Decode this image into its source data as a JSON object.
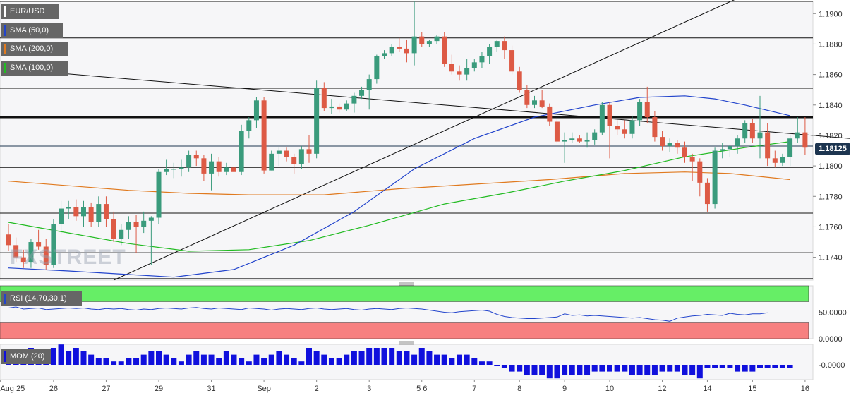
{
  "legend": {
    "symbol": "EUR/USD",
    "sma50": "SMA (50,0)",
    "sma200": "SMA (200,0)",
    "sma100": "SMA (100,0)",
    "rsi": "RSI (14,70,30,1)",
    "mom": "MOM (20)"
  },
  "watermark": "FXSTREET",
  "current_price": "1.18125",
  "colors": {
    "up": "#3a9b7c",
    "down": "#dd5a45",
    "sma50": "#2244cc",
    "sma200": "#e07a1f",
    "sma100": "#22bb22",
    "rsi_line": "#2244cc",
    "rsi_overbought": "#66ee66",
    "rsi_oversold": "#f78080",
    "mom_bar": "#1010dd"
  },
  "chart_data": {
    "type": "candlestick",
    "price_axis": {
      "ylim": [
        1.1725,
        1.1908
      ],
      "ticks": [
        "1.1900",
        "1.1880",
        "1.1860",
        "1.1840",
        "1.1820",
        "1.1800",
        "1.1780",
        "1.1760",
        "1.1740"
      ]
    },
    "x_labels": [
      "Aug 25",
      "26",
      "27",
      "29",
      "31",
      "Sep",
      "2",
      "3",
      "5 6",
      "7",
      "8",
      "9",
      "10",
      "12",
      "14",
      "15",
      "16"
    ],
    "horizontal_levels": [
      1.1908,
      1.1884,
      1.1851,
      1.1832,
      1.1813,
      1.1799,
      1.1769,
      1.1743,
      1.1726
    ],
    "candles": [
      [
        1.1755,
        1.1762,
        1.1744,
        1.1748
      ],
      [
        1.1748,
        1.1753,
        1.1737,
        1.174
      ],
      [
        1.174,
        1.1745,
        1.1733,
        1.1737
      ],
      [
        1.1737,
        1.1752,
        1.1733,
        1.175
      ],
      [
        1.175,
        1.1758,
        1.1745,
        1.1747
      ],
      [
        1.1747,
        1.1752,
        1.1732,
        1.1735
      ],
      [
        1.1735,
        1.1765,
        1.1733,
        1.1762
      ],
      [
        1.1762,
        1.1777,
        1.1755,
        1.1772
      ],
      [
        1.1772,
        1.1777,
        1.1765,
        1.1773
      ],
      [
        1.1773,
        1.1778,
        1.1764,
        1.1767
      ],
      [
        1.1767,
        1.1777,
        1.176,
        1.1773
      ],
      [
        1.1773,
        1.1776,
        1.176,
        1.1763
      ],
      [
        1.1763,
        1.178,
        1.176,
        1.1775
      ],
      [
        1.1775,
        1.178,
        1.176,
        1.1765
      ],
      [
        1.1765,
        1.177,
        1.175,
        1.1752
      ],
      [
        1.1752,
        1.1762,
        1.1748,
        1.1758
      ],
      [
        1.1758,
        1.1767,
        1.1752,
        1.1763
      ],
      [
        1.1763,
        1.1768,
        1.1743,
        1.176
      ],
      [
        1.176,
        1.177,
        1.1756,
        1.1764
      ],
      [
        1.1764,
        1.1767,
        1.1735,
        1.1766
      ],
      [
        1.1766,
        1.1798,
        1.1762,
        1.1796
      ],
      [
        1.1796,
        1.1804,
        1.1794,
        1.1798
      ],
      [
        1.1798,
        1.1802,
        1.1792,
        1.1798
      ],
      [
        1.1798,
        1.1804,
        1.1793,
        1.1799
      ],
      [
        1.1799,
        1.181,
        1.1796,
        1.1807
      ],
      [
        1.1807,
        1.181,
        1.18,
        1.1805
      ],
      [
        1.1805,
        1.1807,
        1.179,
        1.1795
      ],
      [
        1.1795,
        1.1808,
        1.1784,
        1.1803
      ],
      [
        1.1803,
        1.1806,
        1.1793,
        1.1796
      ],
      [
        1.1796,
        1.1802,
        1.1794,
        1.1799
      ],
      [
        1.1799,
        1.1802,
        1.1795,
        1.1796
      ],
      [
        1.1796,
        1.1827,
        1.1794,
        1.1823
      ],
      [
        1.1823,
        1.1832,
        1.1818,
        1.183
      ],
      [
        1.183,
        1.1845,
        1.1825,
        1.1843
      ],
      [
        1.1843,
        1.1845,
        1.1795,
        1.1797
      ],
      [
        1.1797,
        1.181,
        1.1797,
        1.1808
      ],
      [
        1.1808,
        1.1812,
        1.18,
        1.181
      ],
      [
        1.181,
        1.1812,
        1.1803,
        1.1806
      ],
      [
        1.1806,
        1.1808,
        1.1795,
        1.1801
      ],
      [
        1.1801,
        1.1813,
        1.1798,
        1.1811
      ],
      [
        1.1811,
        1.182,
        1.1802,
        1.1808
      ],
      [
        1.1808,
        1.1856,
        1.1805,
        1.1851
      ],
      [
        1.1851,
        1.1855,
        1.1836,
        1.1838
      ],
      [
        1.1838,
        1.1844,
        1.1834,
        1.1839
      ],
      [
        1.1839,
        1.1841,
        1.1835,
        1.1837
      ],
      [
        1.1837,
        1.1843,
        1.1836,
        1.1841
      ],
      [
        1.1841,
        1.1848,
        1.1835,
        1.1846
      ],
      [
        1.1846,
        1.1852,
        1.1844,
        1.185
      ],
      [
        1.185,
        1.186,
        1.1837,
        1.1857
      ],
      [
        1.1857,
        1.1873,
        1.1854,
        1.1872
      ],
      [
        1.1872,
        1.1876,
        1.187,
        1.1874
      ],
      [
        1.1874,
        1.188,
        1.1872,
        1.1878
      ],
      [
        1.1878,
        1.1884,
        1.1875,
        1.1877
      ],
      [
        1.1877,
        1.1883,
        1.1868,
        1.1874
      ],
      [
        1.1874,
        1.1909,
        1.1866,
        1.1885
      ],
      [
        1.1885,
        1.1888,
        1.1878,
        1.188
      ],
      [
        1.188,
        1.1883,
        1.1878,
        1.1882
      ],
      [
        1.1882,
        1.1886,
        1.188,
        1.1885
      ],
      [
        1.1885,
        1.1888,
        1.1865,
        1.1867
      ],
      [
        1.1867,
        1.1873,
        1.186,
        1.1862
      ],
      [
        1.1862,
        1.1866,
        1.1856,
        1.186
      ],
      [
        1.186,
        1.187,
        1.1856,
        1.1864
      ],
      [
        1.1864,
        1.187,
        1.1862,
        1.1868
      ],
      [
        1.1868,
        1.1875,
        1.1864,
        1.1872
      ],
      [
        1.1872,
        1.188,
        1.1867,
        1.1878
      ],
      [
        1.1878,
        1.1883,
        1.1875,
        1.1882
      ],
      [
        1.1882,
        1.1885,
        1.187,
        1.1876
      ],
      [
        1.1876,
        1.1879,
        1.186,
        1.1862
      ],
      [
        1.1862,
        1.1865,
        1.1848,
        1.185
      ],
      [
        1.185,
        1.1853,
        1.1838,
        1.184
      ],
      [
        1.184,
        1.1846,
        1.1838,
        1.1843
      ],
      [
        1.1843,
        1.185,
        1.1838,
        1.1839
      ],
      [
        1.1839,
        1.1841,
        1.1826,
        1.1829
      ],
      [
        1.1829,
        1.1832,
        1.1815,
        1.1816
      ],
      [
        1.1816,
        1.1822,
        1.1802,
        1.1817
      ],
      [
        1.1817,
        1.1822,
        1.1815,
        1.1818
      ],
      [
        1.1818,
        1.182,
        1.1815,
        1.1816
      ],
      [
        1.1816,
        1.1822,
        1.1812,
        1.1817
      ],
      [
        1.1817,
        1.1824,
        1.1814,
        1.1822
      ],
      [
        1.1822,
        1.1842,
        1.182,
        1.184
      ],
      [
        1.184,
        1.1842,
        1.1805,
        1.1826
      ],
      [
        1.1826,
        1.183,
        1.182,
        1.1824
      ],
      [
        1.1824,
        1.183,
        1.1818,
        1.1821
      ],
      [
        1.1821,
        1.1833,
        1.1818,
        1.183
      ],
      [
        1.183,
        1.1844,
        1.1826,
        1.1842
      ],
      [
        1.1842,
        1.1852,
        1.1828,
        1.1832
      ],
      [
        1.1832,
        1.1836,
        1.1816,
        1.1819
      ],
      [
        1.1819,
        1.1823,
        1.181,
        1.1813
      ],
      [
        1.1813,
        1.1818,
        1.1809,
        1.1815
      ],
      [
        1.1815,
        1.1817,
        1.1808,
        1.1812
      ],
      [
        1.1812,
        1.1816,
        1.1802,
        1.1806
      ],
      [
        1.1806,
        1.1808,
        1.179,
        1.1803
      ],
      [
        1.1803,
        1.1805,
        1.178,
        1.1789
      ],
      [
        1.1789,
        1.1792,
        1.177,
        1.1775
      ],
      [
        1.1775,
        1.1812,
        1.1772,
        1.181
      ],
      [
        1.181,
        1.1815,
        1.1805,
        1.1811
      ],
      [
        1.1811,
        1.1814,
        1.1806,
        1.1813
      ],
      [
        1.1813,
        1.182,
        1.1808,
        1.1818
      ],
      [
        1.1818,
        1.183,
        1.1815,
        1.1828
      ],
      [
        1.1828,
        1.1831,
        1.1815,
        1.1818
      ],
      [
        1.1818,
        1.1846,
        1.1805,
        1.1822
      ],
      [
        1.1822,
        1.1828,
        1.18,
        1.1805
      ],
      [
        1.1805,
        1.181,
        1.1799,
        1.1802
      ],
      [
        1.1802,
        1.1808,
        1.18,
        1.1806
      ],
      [
        1.1806,
        1.182,
        1.18,
        1.1818
      ],
      [
        1.1818,
        1.1832,
        1.1815,
        1.1822
      ],
      [
        1.1822,
        1.1832,
        1.1807,
        1.1812
      ]
    ],
    "sma50": [
      [
        0,
        1.1733
      ],
      [
        8,
        1.1731
      ],
      [
        15,
        1.1729
      ],
      [
        22,
        1.1727
      ],
      [
        30,
        1.1732
      ],
      [
        38,
        1.1748
      ],
      [
        46,
        1.177
      ],
      [
        54,
        1.1798
      ],
      [
        62,
        1.1818
      ],
      [
        70,
        1.1832
      ],
      [
        78,
        1.184
      ],
      [
        84,
        1.1845
      ],
      [
        90,
        1.1846
      ],
      [
        94,
        1.1844
      ],
      [
        98,
        1.184
      ],
      [
        104,
        1.1833
      ]
    ],
    "sma200": [
      [
        0,
        1.179
      ],
      [
        8,
        1.1787
      ],
      [
        16,
        1.1784
      ],
      [
        24,
        1.1782
      ],
      [
        32,
        1.1781
      ],
      [
        42,
        1.1781
      ],
      [
        52,
        1.1785
      ],
      [
        62,
        1.1788
      ],
      [
        72,
        1.1791
      ],
      [
        82,
        1.1795
      ],
      [
        90,
        1.1796
      ],
      [
        96,
        1.1795
      ],
      [
        104,
        1.1791
      ]
    ],
    "sma100": [
      [
        0,
        1.1763
      ],
      [
        8,
        1.1756
      ],
      [
        16,
        1.1749
      ],
      [
        24,
        1.1744
      ],
      [
        32,
        1.1745
      ],
      [
        40,
        1.1751
      ],
      [
        48,
        1.1761
      ],
      [
        58,
        1.1775
      ],
      [
        66,
        1.1782
      ],
      [
        74,
        1.179
      ],
      [
        82,
        1.1797
      ],
      [
        90,
        1.1806
      ],
      [
        98,
        1.1812
      ],
      [
        104,
        1.1816
      ]
    ],
    "trendlines": [
      {
        "from": [
          -1,
          1.1864
        ],
        "to": [
          112,
          1.1818
        ]
      },
      {
        "from": [
          14,
          1.1725
        ],
        "to": [
          97,
          1.191
        ]
      }
    ],
    "rsi": {
      "ylim": [
        0,
        100
      ],
      "ticks": [
        "50.0000",
        "0.0000"
      ],
      "overbought": 70,
      "oversold": 30,
      "values": [
        58,
        60,
        56,
        57,
        58,
        55,
        56,
        57,
        58,
        57,
        58,
        56,
        55,
        57,
        56,
        57,
        55,
        54,
        56,
        55,
        57,
        58,
        57,
        56,
        58,
        59,
        57,
        56,
        58,
        57,
        56,
        55,
        58,
        57,
        56,
        54,
        56,
        57,
        56,
        55,
        57,
        58,
        56,
        55,
        56,
        57,
        55,
        54,
        56,
        57,
        56,
        55,
        57,
        58,
        57,
        56,
        54,
        52,
        50,
        49,
        51,
        52,
        53,
        54,
        52,
        46,
        42,
        40,
        39,
        38,
        38,
        39,
        40,
        41,
        47,
        44,
        45,
        43,
        44,
        43,
        42,
        41,
        40,
        39,
        40,
        38,
        36,
        35,
        33,
        39,
        41,
        43,
        44,
        46,
        45,
        44,
        48,
        46,
        45,
        47,
        47,
        49
      ]
    },
    "momentum": {
      "ticks": [
        "-0.0000"
      ],
      "values": [
        3,
        4,
        4,
        5,
        3,
        4,
        5,
        6,
        4,
        5,
        4,
        3,
        2,
        2,
        1,
        1,
        2,
        2,
        3,
        4,
        4,
        3,
        2,
        1,
        3,
        4,
        3,
        3,
        2,
        4,
        3,
        2,
        1,
        3,
        2,
        3,
        4,
        3,
        2,
        1,
        5,
        4,
        3,
        2,
        2,
        3,
        4,
        4,
        5,
        5,
        5,
        5,
        4,
        4,
        3,
        5,
        4,
        3,
        3,
        2,
        3,
        3,
        2,
        1,
        1,
        0,
        -1,
        -2,
        -2,
        -3,
        -3,
        -3,
        -4,
        -4,
        -3,
        -3,
        -3,
        -3,
        -2,
        -2,
        -2,
        -2,
        -2,
        -3,
        -3,
        -3,
        -3,
        -2,
        -2,
        -2,
        -3,
        -3,
        -4,
        -1,
        -1,
        -1,
        -1,
        -2,
        -2,
        -2,
        -1,
        -1,
        -1,
        -1,
        -1
      ]
    }
  }
}
